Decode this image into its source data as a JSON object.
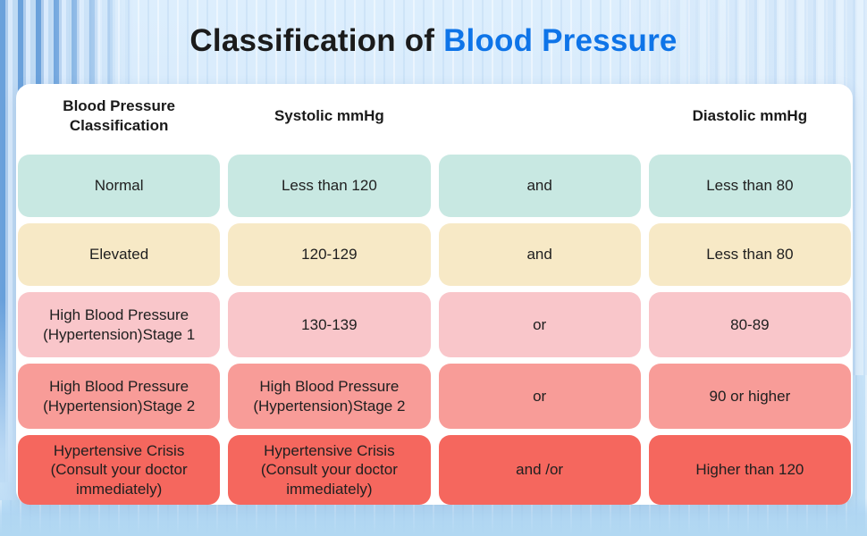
{
  "title": {
    "prefix": "Classification of ",
    "highlight": "Blood Pressure"
  },
  "colors": {
    "title_text": "#1b1b1b",
    "title_highlight": "#0e74e8",
    "row_normal": "#c8e8e2",
    "row_elevated": "#f7e9c6",
    "row_stage1": "#f9c6ca",
    "row_stage2": "#f89c98",
    "row_crisis": "#f5675e"
  },
  "chart_data": {
    "type": "table",
    "title": "Classification of Blood Pressure",
    "columns": [
      "Blood Pressure Classification",
      "Systolic mmHg",
      "",
      "Diastolic mmHg"
    ],
    "rows": [
      {
        "classification": "Normal",
        "systolic": "Less than 120",
        "connector": "and",
        "diastolic": "Less than 80",
        "color": "#c8e8e2"
      },
      {
        "classification": "Elevated",
        "systolic": "120-129",
        "connector": "and",
        "diastolic": "Less than 80",
        "color": "#f7e9c6"
      },
      {
        "classification": "High Blood Pressure (Hypertension)Stage 1",
        "systolic": "130-139",
        "connector": "or",
        "diastolic": "80-89",
        "color": "#f9c6ca"
      },
      {
        "classification": "High Blood Pressure (Hypertension)Stage 2",
        "systolic": "High Blood Pressure (Hypertension)Stage 2",
        "connector": "or",
        "diastolic": "90 or higher",
        "color": "#f89c98"
      },
      {
        "classification": "Hypertensive Crisis (Consult your doctor immediately)",
        "systolic": "Hypertensive Crisis (Consult your doctor immediately)",
        "connector": "and /or",
        "diastolic": "Higher than 120",
        "color": "#f5675e"
      }
    ]
  }
}
